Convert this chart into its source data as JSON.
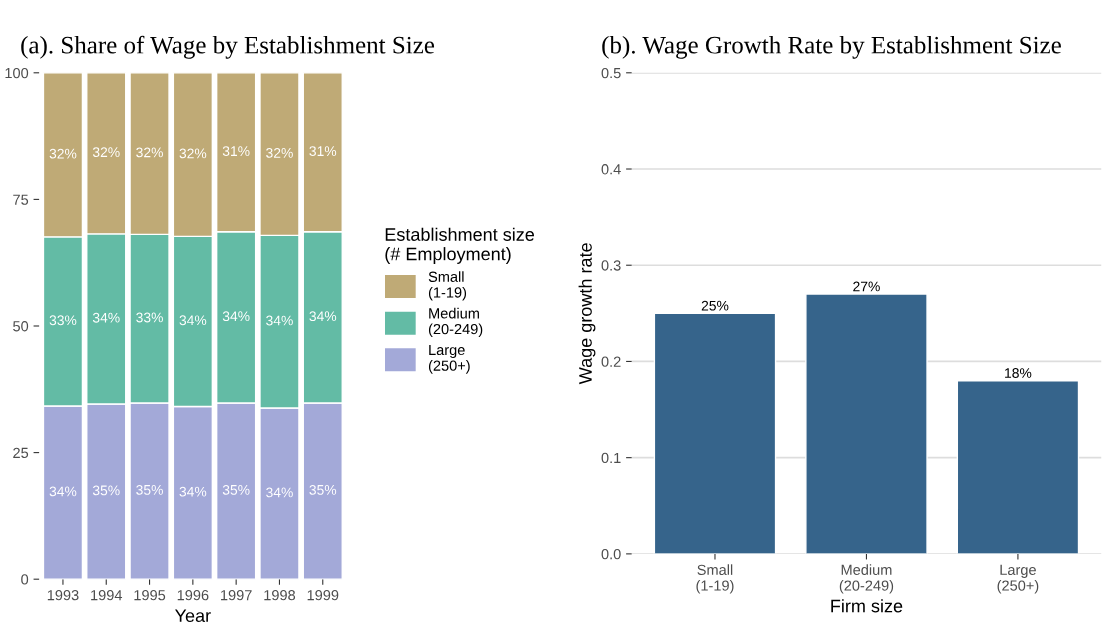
{
  "chart_data": [
    {
      "type": "bar",
      "title": "(a). Share of Wage by Establishment Size",
      "xlabel": "Year",
      "stacked": true,
      "legend": "right",
      "legend_title": "Establishment size\n(# Employment)",
      "grid": false,
      "categories": [
        "1993",
        "1994",
        "1995",
        "1996",
        "1997",
        "1998",
        "1999"
      ],
      "ylim": [
        0,
        100
      ],
      "yticks": [
        0,
        25,
        50,
        75,
        100
      ],
      "series": [
        {
          "name": "Large\n(250+)",
          "color": "#a3a9d8",
          "values": [
            34.2,
            34.6,
            34.8,
            34.1,
            34.8,
            33.8,
            34.8
          ],
          "value_labels": [
            "34%",
            "35%",
            "35%",
            "34%",
            "35%",
            "34%",
            "35%"
          ]
        },
        {
          "name": "Medium\n(20-249)",
          "color": "#63bba5",
          "values": [
            33.4,
            33.6,
            33.3,
            33.6,
            33.8,
            34.1,
            33.8
          ],
          "value_labels": [
            "33%",
            "34%",
            "33%",
            "34%",
            "34%",
            "34%",
            "34%"
          ]
        },
        {
          "name": "Small\n(1-19)",
          "color": "#bfaa76",
          "values": [
            32.4,
            31.8,
            31.9,
            32.3,
            31.4,
            32.1,
            31.4
          ],
          "value_labels": [
            "32%",
            "32%",
            "32%",
            "32%",
            "31%",
            "32%",
            "31%"
          ]
        }
      ]
    },
    {
      "type": "bar",
      "title": "(b). Wage Growth Rate by Establishment Size",
      "xlabel": "Firm size",
      "ylabel": "Wage growth rate",
      "grid": "y",
      "categories": [
        "Small\n(1-19)",
        "Medium\n(20-249)",
        "Large\n(250+)"
      ],
      "ylim": [
        0,
        0.5
      ],
      "yticks": [
        {
          "value": 0,
          "label": "0.0"
        },
        0.1,
        0.2,
        0.3,
        0.4,
        0.5
      ],
      "series": [
        {
          "color": "#36648b",
          "values": [
            0.25,
            0.27,
            0.18
          ],
          "value_labels": [
            "25%",
            "27%",
            "18%"
          ]
        }
      ]
    }
  ]
}
